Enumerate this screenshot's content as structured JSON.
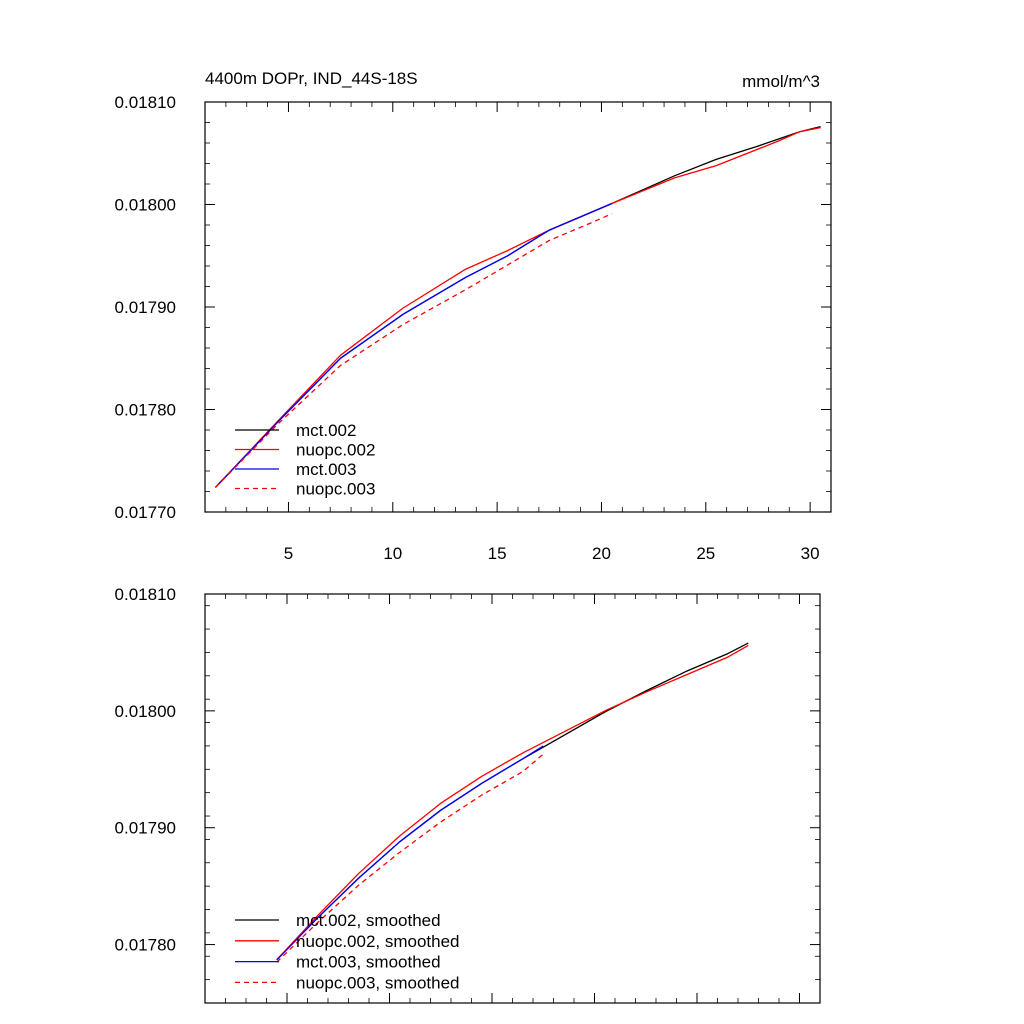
{
  "chart_data": [
    {
      "type": "line",
      "title_left": "4400m DOPr, IND_44S-18S",
      "title_right": "mmol/m^3",
      "xlabel": "",
      "ylabel": "",
      "xlim": [
        1,
        31
      ],
      "ylim": [
        0.0177,
        0.0181
      ],
      "x_ticks": [
        5,
        10,
        15,
        20,
        25,
        30
      ],
      "x_tick_labels": [
        "5",
        "10",
        "15",
        "20",
        "25",
        "30"
      ],
      "y_ticks": [
        0.0177,
        0.0178,
        0.0179,
        0.018,
        0.0181
      ],
      "y_tick_labels": [
        "0.01770",
        "0.01780",
        "0.01790",
        "0.01800",
        "0.01810"
      ],
      "grid": false,
      "legend_position": "bottom-left",
      "series": [
        {
          "name": "mct.002",
          "color": "#000000",
          "dash": "solid",
          "x": [
            1.5,
            4.5,
            7.5,
            10.5,
            13.5,
            15.5,
            17.5,
            20.5,
            23.5,
            25.5,
            27.5,
            29.5,
            30.5
          ],
          "y": [
            0.017724,
            0.017788,
            0.01785,
            0.017893,
            0.017929,
            0.01795,
            0.017975,
            0.018001,
            0.018028,
            0.018044,
            0.018057,
            0.018071,
            0.018076
          ]
        },
        {
          "name": "nuopc.002",
          "color": "#ff0000",
          "dash": "solid",
          "x": [
            1.5,
            4.5,
            7.5,
            10.5,
            13.5,
            15.5,
            17.5,
            20.5,
            23.5,
            25.5,
            28.5,
            29.5,
            30.5
          ],
          "y": [
            0.017724,
            0.017789,
            0.017853,
            0.017899,
            0.017937,
            0.017955,
            0.017975,
            0.018001,
            0.018026,
            0.018038,
            0.018062,
            0.018071,
            0.018075
          ]
        },
        {
          "name": "mct.003",
          "color": "#0000ff",
          "dash": "solid",
          "x": [
            1.5,
            4.5,
            7.5,
            10.5,
            13.5,
            15.5,
            17.5,
            20.5
          ],
          "y": [
            0.017724,
            0.017788,
            0.01785,
            0.017893,
            0.017929,
            0.01795,
            0.017975,
            0.018001
          ]
        },
        {
          "name": "nuopc.003",
          "color": "#ff0000",
          "dash": "dashed",
          "x": [
            1.5,
            4.5,
            7.5,
            10.5,
            13.5,
            15.5,
            17.5,
            19.5,
            20.5
          ],
          "y": [
            0.017724,
            0.017786,
            0.017843,
            0.017883,
            0.017917,
            0.017941,
            0.017965,
            0.017982,
            0.017991
          ]
        }
      ]
    },
    {
      "type": "line",
      "xlabel": "",
      "ylabel": "",
      "xlim": [
        1,
        31
      ],
      "ylim": [
        0.01775,
        0.0181
      ],
      "x_ticks": [
        5,
        10,
        15,
        20,
        25,
        30
      ],
      "x_tick_labels": [],
      "y_ticks": [
        0.0178,
        0.0179,
        0.018,
        0.0181
      ],
      "y_tick_labels": [
        "0.01780",
        "0.01790",
        "0.01800",
        "0.01810"
      ],
      "grid": false,
      "legend_position": "bottom-left",
      "series": [
        {
          "name": "mct.002, smoothed",
          "color": "#000000",
          "dash": "solid",
          "x": [
            4.5,
            6.5,
            8.5,
            10.5,
            12.5,
            14.5,
            16.5,
            18.5,
            20.5,
            22.5,
            24.5,
            26.5,
            27.5
          ],
          "y": [
            0.017787,
            0.017823,
            0.017857,
            0.017888,
            0.017915,
            0.017938,
            0.017959,
            0.017979,
            0.017999,
            0.018017,
            0.018034,
            0.018049,
            0.018058
          ]
        },
        {
          "name": "nuopc.002, smoothed",
          "color": "#ff0000",
          "dash": "solid",
          "x": [
            4.5,
            6.5,
            8.5,
            10.5,
            12.5,
            14.5,
            16.5,
            18.5,
            20.5,
            22.5,
            24.5,
            26.5,
            27.5
          ],
          "y": [
            0.017787,
            0.017825,
            0.017861,
            0.017893,
            0.017921,
            0.017944,
            0.017964,
            0.017982,
            0.018,
            0.018016,
            0.018031,
            0.018046,
            0.018056
          ]
        },
        {
          "name": "mct.003, smoothed",
          "color": "#0000ff",
          "dash": "solid",
          "x": [
            4.5,
            6.5,
            8.5,
            10.5,
            12.5,
            14.5,
            16.5,
            17.5
          ],
          "y": [
            0.017787,
            0.017823,
            0.017857,
            0.017888,
            0.017915,
            0.017938,
            0.017959,
            0.01797
          ]
        },
        {
          "name": "nuopc.003, smoothed",
          "color": "#ff0000",
          "dash": "dashed",
          "x": [
            4.5,
            6.5,
            8.5,
            10.5,
            12.5,
            14.5,
            16.5,
            17.5
          ],
          "y": [
            0.017785,
            0.017819,
            0.017851,
            0.017879,
            0.017905,
            0.017928,
            0.017948,
            0.017963
          ]
        }
      ]
    }
  ]
}
